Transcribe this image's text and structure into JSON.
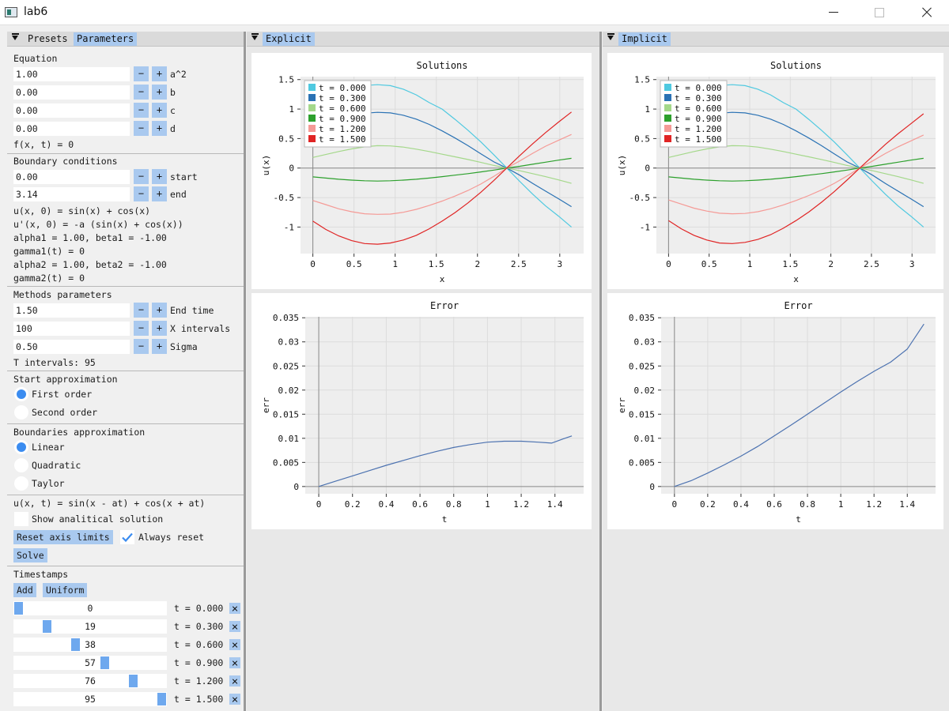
{
  "window": {
    "title": "lab6"
  },
  "left_panel": {
    "tabs": [
      {
        "label": "Presets",
        "active": false
      },
      {
        "label": "Parameters",
        "active": true
      }
    ],
    "equation": {
      "heading": "Equation",
      "fields": [
        {
          "value": "1.00",
          "label": "a^2"
        },
        {
          "value": "0.00",
          "label": "b"
        },
        {
          "value": "0.00",
          "label": "c"
        },
        {
          "value": "0.00",
          "label": "d"
        }
      ],
      "formula": "f(x, t) = 0"
    },
    "boundary": {
      "heading": "Boundary conditions",
      "fields": [
        {
          "value": "0.00",
          "label": "start"
        },
        {
          "value": "3.14",
          "label": "end"
        }
      ],
      "lines": [
        "u(x, 0) = sin(x) + cos(x)",
        "u'(x, 0) = -a (sin(x) + cos(x))",
        "alpha1 = 1.00, beta1 = -1.00",
        "gamma1(t) = 0",
        "alpha2 = 1.00, beta2 = -1.00",
        "gamma2(t) = 0"
      ]
    },
    "methods": {
      "heading": "Methods parameters",
      "fields": [
        {
          "value": "1.50",
          "label": "End time"
        },
        {
          "value": "100",
          "label": "X intervals"
        },
        {
          "value": "0.50",
          "label": "Sigma"
        }
      ],
      "t_intervals": "T intervals: 95"
    },
    "start_approx": {
      "heading": "Start approximation",
      "options": [
        {
          "label": "First order",
          "selected": true
        },
        {
          "label": "Second order",
          "selected": false
        }
      ]
    },
    "boundaries_approx": {
      "heading": "Boundaries approximation",
      "options": [
        {
          "label": "Linear",
          "selected": true
        },
        {
          "label": "Quadratic",
          "selected": false
        },
        {
          "label": "Taylor",
          "selected": false
        }
      ]
    },
    "analytical": {
      "formula": "u(x, t) = sin(x - at) + cos(x + at)",
      "show_label": "Show analitical solution",
      "show_checked": false
    },
    "reset_axis_label": "Reset axis limits",
    "always_reset_label": "Always reset",
    "always_reset_checked": true,
    "solve_label": "Solve",
    "timestamps": {
      "heading": "Timestamps",
      "add_label": "Add",
      "uniform_label": "Uniform",
      "slider_max": 95,
      "items": [
        {
          "value": "0",
          "label": "t = 0.000"
        },
        {
          "value": "19",
          "label": "t = 0.300"
        },
        {
          "value": "38",
          "label": "t = 0.600"
        },
        {
          "value": "57",
          "label": "t = 0.900"
        },
        {
          "value": "76",
          "label": "t = 1.200"
        },
        {
          "value": "95",
          "label": "t = 1.500"
        }
      ]
    }
  },
  "explicit_panel": {
    "tab_label": "Explicit"
  },
  "implicit_panel": {
    "tab_label": "Implicit"
  },
  "chart_data": [
    {
      "id": "explicit-solutions",
      "type": "line",
      "title": "Solutions",
      "xlabel": "x",
      "ylabel": "u(x)",
      "xlim": [
        -0.15,
        3.29
      ],
      "ylim": [
        -1.45,
        1.55
      ],
      "xticks": [
        0,
        0.5,
        1,
        1.5,
        2,
        2.5,
        3
      ],
      "xtick_labels": [
        "0",
        "0.5",
        "1",
        "1.5",
        "2",
        "2.5",
        "3"
      ],
      "yticks": [
        -1,
        -0.5,
        0,
        0.5,
        1,
        1.5
      ],
      "ytick_labels": [
        "-1",
        "-0.5",
        "0",
        "0.5",
        "1",
        "1.5"
      ],
      "grid": true,
      "legend": "top-left",
      "x": [
        0,
        0.157,
        0.314,
        0.471,
        0.628,
        0.785,
        0.942,
        1.1,
        1.257,
        1.414,
        1.571,
        1.728,
        1.885,
        2.042,
        2.199,
        2.356,
        2.513,
        2.67,
        2.827,
        2.985,
        3.142
      ],
      "series": [
        {
          "name": "t = 0.000",
          "color": "#4fc9e0",
          "values": [
            1,
            1.14,
            1.26,
            1.35,
            1.4,
            1.414,
            1.397,
            1.337,
            1.24,
            1.11,
            1,
            0.825,
            0.641,
            0.442,
            0.225,
            0,
            -0.225,
            -0.442,
            -0.641,
            -0.815,
            -1
          ]
        },
        {
          "name": "t = 0.300",
          "color": "#2a72b4",
          "values": [
            0.66,
            0.75,
            0.83,
            0.89,
            0.93,
            0.945,
            0.935,
            0.895,
            0.83,
            0.74,
            0.63,
            0.51,
            0.38,
            0.24,
            0.105,
            0,
            -0.12,
            -0.26,
            -0.39,
            -0.52,
            -0.655
          ]
        },
        {
          "name": "t = 0.600",
          "color": "#a4d88a",
          "values": [
            0.18,
            0.23,
            0.28,
            0.325,
            0.36,
            0.38,
            0.375,
            0.355,
            0.32,
            0.28,
            0.235,
            0.19,
            0.145,
            0.095,
            0.045,
            0,
            -0.045,
            -0.095,
            -0.145,
            -0.2,
            -0.26
          ]
        },
        {
          "name": "t = 0.900",
          "color": "#2ca02c",
          "values": [
            -0.15,
            -0.17,
            -0.19,
            -0.205,
            -0.215,
            -0.22,
            -0.215,
            -0.205,
            -0.19,
            -0.17,
            -0.145,
            -0.12,
            -0.095,
            -0.065,
            -0.035,
            0,
            0.03,
            0.065,
            0.1,
            0.135,
            0.165
          ]
        },
        {
          "name": "t = 1.200",
          "color": "#f59a96",
          "values": [
            -0.55,
            -0.62,
            -0.69,
            -0.74,
            -0.775,
            -0.785,
            -0.78,
            -0.75,
            -0.7,
            -0.635,
            -0.56,
            -0.475,
            -0.38,
            -0.27,
            -0.14,
            0,
            0.12,
            0.25,
            0.37,
            0.47,
            0.57
          ]
        },
        {
          "name": "t = 1.500",
          "color": "#e02424",
          "values": [
            -0.9,
            -1.04,
            -1.15,
            -1.23,
            -1.28,
            -1.29,
            -1.27,
            -1.22,
            -1.14,
            -1.03,
            -0.9,
            -0.755,
            -0.59,
            -0.41,
            -0.21,
            0,
            0.21,
            0.41,
            0.6,
            0.78,
            0.95
          ]
        }
      ]
    },
    {
      "id": "explicit-error",
      "type": "line",
      "title": "Error",
      "xlabel": "t",
      "ylabel": "err",
      "xlim": [
        -0.08,
        1.57
      ],
      "ylim": [
        -0.0015,
        0.0352
      ],
      "xticks": [
        0,
        0.2,
        0.4,
        0.6,
        0.8,
        1,
        1.2,
        1.4
      ],
      "xtick_labels": [
        "0",
        "0.2",
        "0.4",
        "0.6",
        "0.8",
        "1",
        "1.2",
        "1.4"
      ],
      "yticks": [
        0,
        0.005,
        0.01,
        0.015,
        0.02,
        0.025,
        0.03,
        0.035
      ],
      "ytick_labels": [
        "0",
        "0.005",
        "0.01",
        "0.015",
        "0.02",
        "0.025",
        "0.03",
        "0.035"
      ],
      "grid": true,
      "series": [
        {
          "name": "",
          "color": "#4c72b0",
          "x": [
            0,
            0.1,
            0.2,
            0.3,
            0.4,
            0.5,
            0.6,
            0.7,
            0.8,
            0.9,
            1.0,
            1.1,
            1.2,
            1.3,
            1.38,
            1.45,
            1.5
          ],
          "values": [
            0,
            0.0011,
            0.0022,
            0.0033,
            0.0044,
            0.0054,
            0.0064,
            0.0073,
            0.0081,
            0.0087,
            0.0092,
            0.0094,
            0.0094,
            0.0092,
            0.009,
            0.0099,
            0.0105
          ]
        }
      ]
    },
    {
      "id": "implicit-solutions",
      "type": "line",
      "title": "Solutions",
      "xlabel": "x",
      "ylabel": "u(x)",
      "xlim": [
        -0.15,
        3.29
      ],
      "ylim": [
        -1.45,
        1.55
      ],
      "xticks": [
        0,
        0.5,
        1,
        1.5,
        2,
        2.5,
        3
      ],
      "xtick_labels": [
        "0",
        "0.5",
        "1",
        "1.5",
        "2",
        "2.5",
        "3"
      ],
      "yticks": [
        -1,
        -0.5,
        0,
        0.5,
        1,
        1.5
      ],
      "ytick_labels": [
        "-1",
        "-0.5",
        "0",
        "0.5",
        "1",
        "1.5"
      ],
      "grid": true,
      "legend": "top-left",
      "x": [
        0,
        0.157,
        0.314,
        0.471,
        0.628,
        0.785,
        0.942,
        1.1,
        1.257,
        1.414,
        1.571,
        1.728,
        1.885,
        2.042,
        2.199,
        2.356,
        2.513,
        2.67,
        2.827,
        2.985,
        3.142
      ],
      "series": [
        {
          "name": "t = 0.000",
          "color": "#4fc9e0",
          "values": [
            1,
            1.14,
            1.26,
            1.35,
            1.4,
            1.414,
            1.397,
            1.337,
            1.24,
            1.11,
            1,
            0.825,
            0.641,
            0.442,
            0.225,
            0,
            -0.225,
            -0.442,
            -0.641,
            -0.815,
            -1
          ]
        },
        {
          "name": "t = 0.300",
          "color": "#2a72b4",
          "values": [
            0.66,
            0.75,
            0.83,
            0.89,
            0.93,
            0.945,
            0.935,
            0.895,
            0.83,
            0.74,
            0.63,
            0.51,
            0.38,
            0.24,
            0.105,
            0,
            -0.12,
            -0.26,
            -0.39,
            -0.52,
            -0.655
          ]
        },
        {
          "name": "t = 0.600",
          "color": "#a4d88a",
          "values": [
            0.18,
            0.23,
            0.28,
            0.325,
            0.36,
            0.38,
            0.375,
            0.355,
            0.32,
            0.28,
            0.235,
            0.19,
            0.145,
            0.095,
            0.045,
            0,
            -0.045,
            -0.095,
            -0.145,
            -0.2,
            -0.26
          ]
        },
        {
          "name": "t = 0.900",
          "color": "#2ca02c",
          "values": [
            -0.15,
            -0.17,
            -0.19,
            -0.205,
            -0.215,
            -0.22,
            -0.215,
            -0.205,
            -0.19,
            -0.17,
            -0.145,
            -0.12,
            -0.095,
            -0.065,
            -0.035,
            0,
            0.03,
            0.065,
            0.1,
            0.135,
            0.165
          ]
        },
        {
          "name": "t = 1.200",
          "color": "#f59a96",
          "values": [
            -0.54,
            -0.61,
            -0.68,
            -0.73,
            -0.765,
            -0.775,
            -0.77,
            -0.74,
            -0.69,
            -0.625,
            -0.55,
            -0.465,
            -0.37,
            -0.26,
            -0.135,
            0,
            0.12,
            0.245,
            0.36,
            0.46,
            0.56
          ]
        },
        {
          "name": "t = 1.500",
          "color": "#e02424",
          "values": [
            -0.89,
            -1.03,
            -1.14,
            -1.22,
            -1.27,
            -1.28,
            -1.26,
            -1.21,
            -1.13,
            -1.02,
            -0.89,
            -0.745,
            -0.58,
            -0.4,
            -0.205,
            0,
            0.2,
            0.4,
            0.58,
            0.75,
            0.92
          ]
        }
      ]
    },
    {
      "id": "implicit-error",
      "type": "line",
      "title": "Error",
      "xlabel": "t",
      "ylabel": "err",
      "xlim": [
        -0.08,
        1.57
      ],
      "ylim": [
        -0.0015,
        0.0352
      ],
      "xticks": [
        0,
        0.2,
        0.4,
        0.6,
        0.8,
        1,
        1.2,
        1.4
      ],
      "xtick_labels": [
        "0",
        "0.2",
        "0.4",
        "0.6",
        "0.8",
        "1",
        "1.2",
        "1.4"
      ],
      "yticks": [
        0,
        0.005,
        0.01,
        0.015,
        0.02,
        0.025,
        0.03,
        0.035
      ],
      "ytick_labels": [
        "0",
        "0.005",
        "0.01",
        "0.015",
        "0.02",
        "0.025",
        "0.03",
        "0.035"
      ],
      "grid": true,
      "series": [
        {
          "name": "",
          "color": "#4c72b0",
          "x": [
            0,
            0.1,
            0.2,
            0.3,
            0.4,
            0.5,
            0.6,
            0.7,
            0.8,
            0.9,
            1.0,
            1.1,
            1.2,
            1.3,
            1.4,
            1.5
          ],
          "values": [
            0,
            0.0012,
            0.0028,
            0.0045,
            0.0063,
            0.0083,
            0.0105,
            0.0127,
            0.015,
            0.0173,
            0.0196,
            0.0218,
            0.0239,
            0.0258,
            0.0285,
            0.0337
          ]
        }
      ]
    }
  ]
}
